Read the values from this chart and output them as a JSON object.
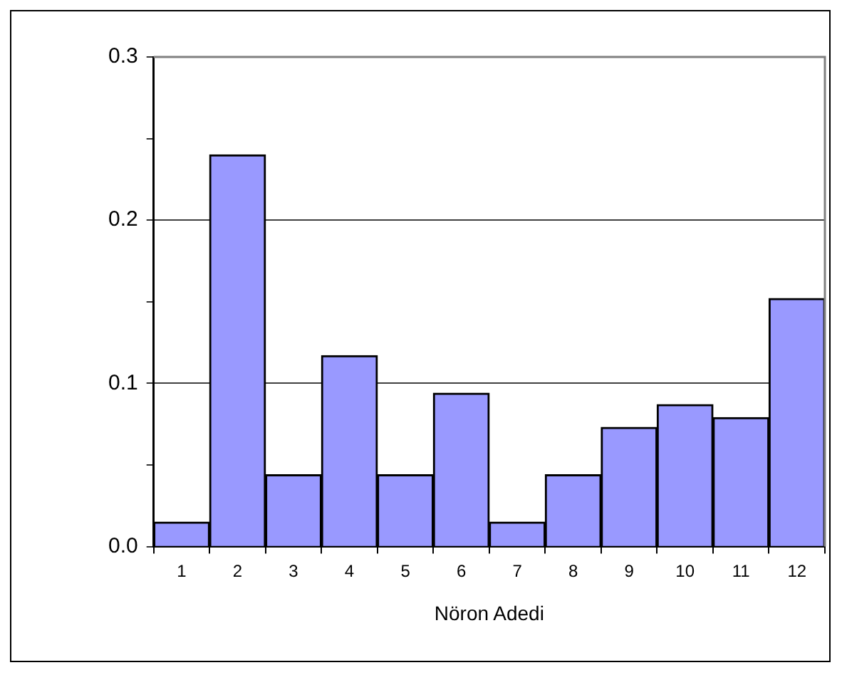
{
  "chart_data": {
    "type": "bar",
    "xlabel": "Nöron Adedi",
    "categories": [
      "1",
      "2",
      "3",
      "4",
      "5",
      "6",
      "7",
      "8",
      "9",
      "10",
      "11",
      "12"
    ],
    "values": [
      0.015,
      0.24,
      0.044,
      0.117,
      0.044,
      0.094,
      0.015,
      0.044,
      0.073,
      0.087,
      0.079,
      0.152
    ],
    "color": "#9999ff",
    "ylim": [
      0,
      0.3
    ],
    "yticks": [
      {
        "value": 0,
        "label": "0.0"
      },
      {
        "value": 0.05,
        "label": null
      },
      {
        "value": 0.1,
        "label": "0.1"
      },
      {
        "value": 0.15,
        "label": null
      },
      {
        "value": 0.2,
        "label": "0.2"
      },
      {
        "value": 0.25,
        "label": null
      },
      {
        "value": 0.3,
        "label": "0.3"
      }
    ],
    "grid": "y",
    "legend": false
  }
}
